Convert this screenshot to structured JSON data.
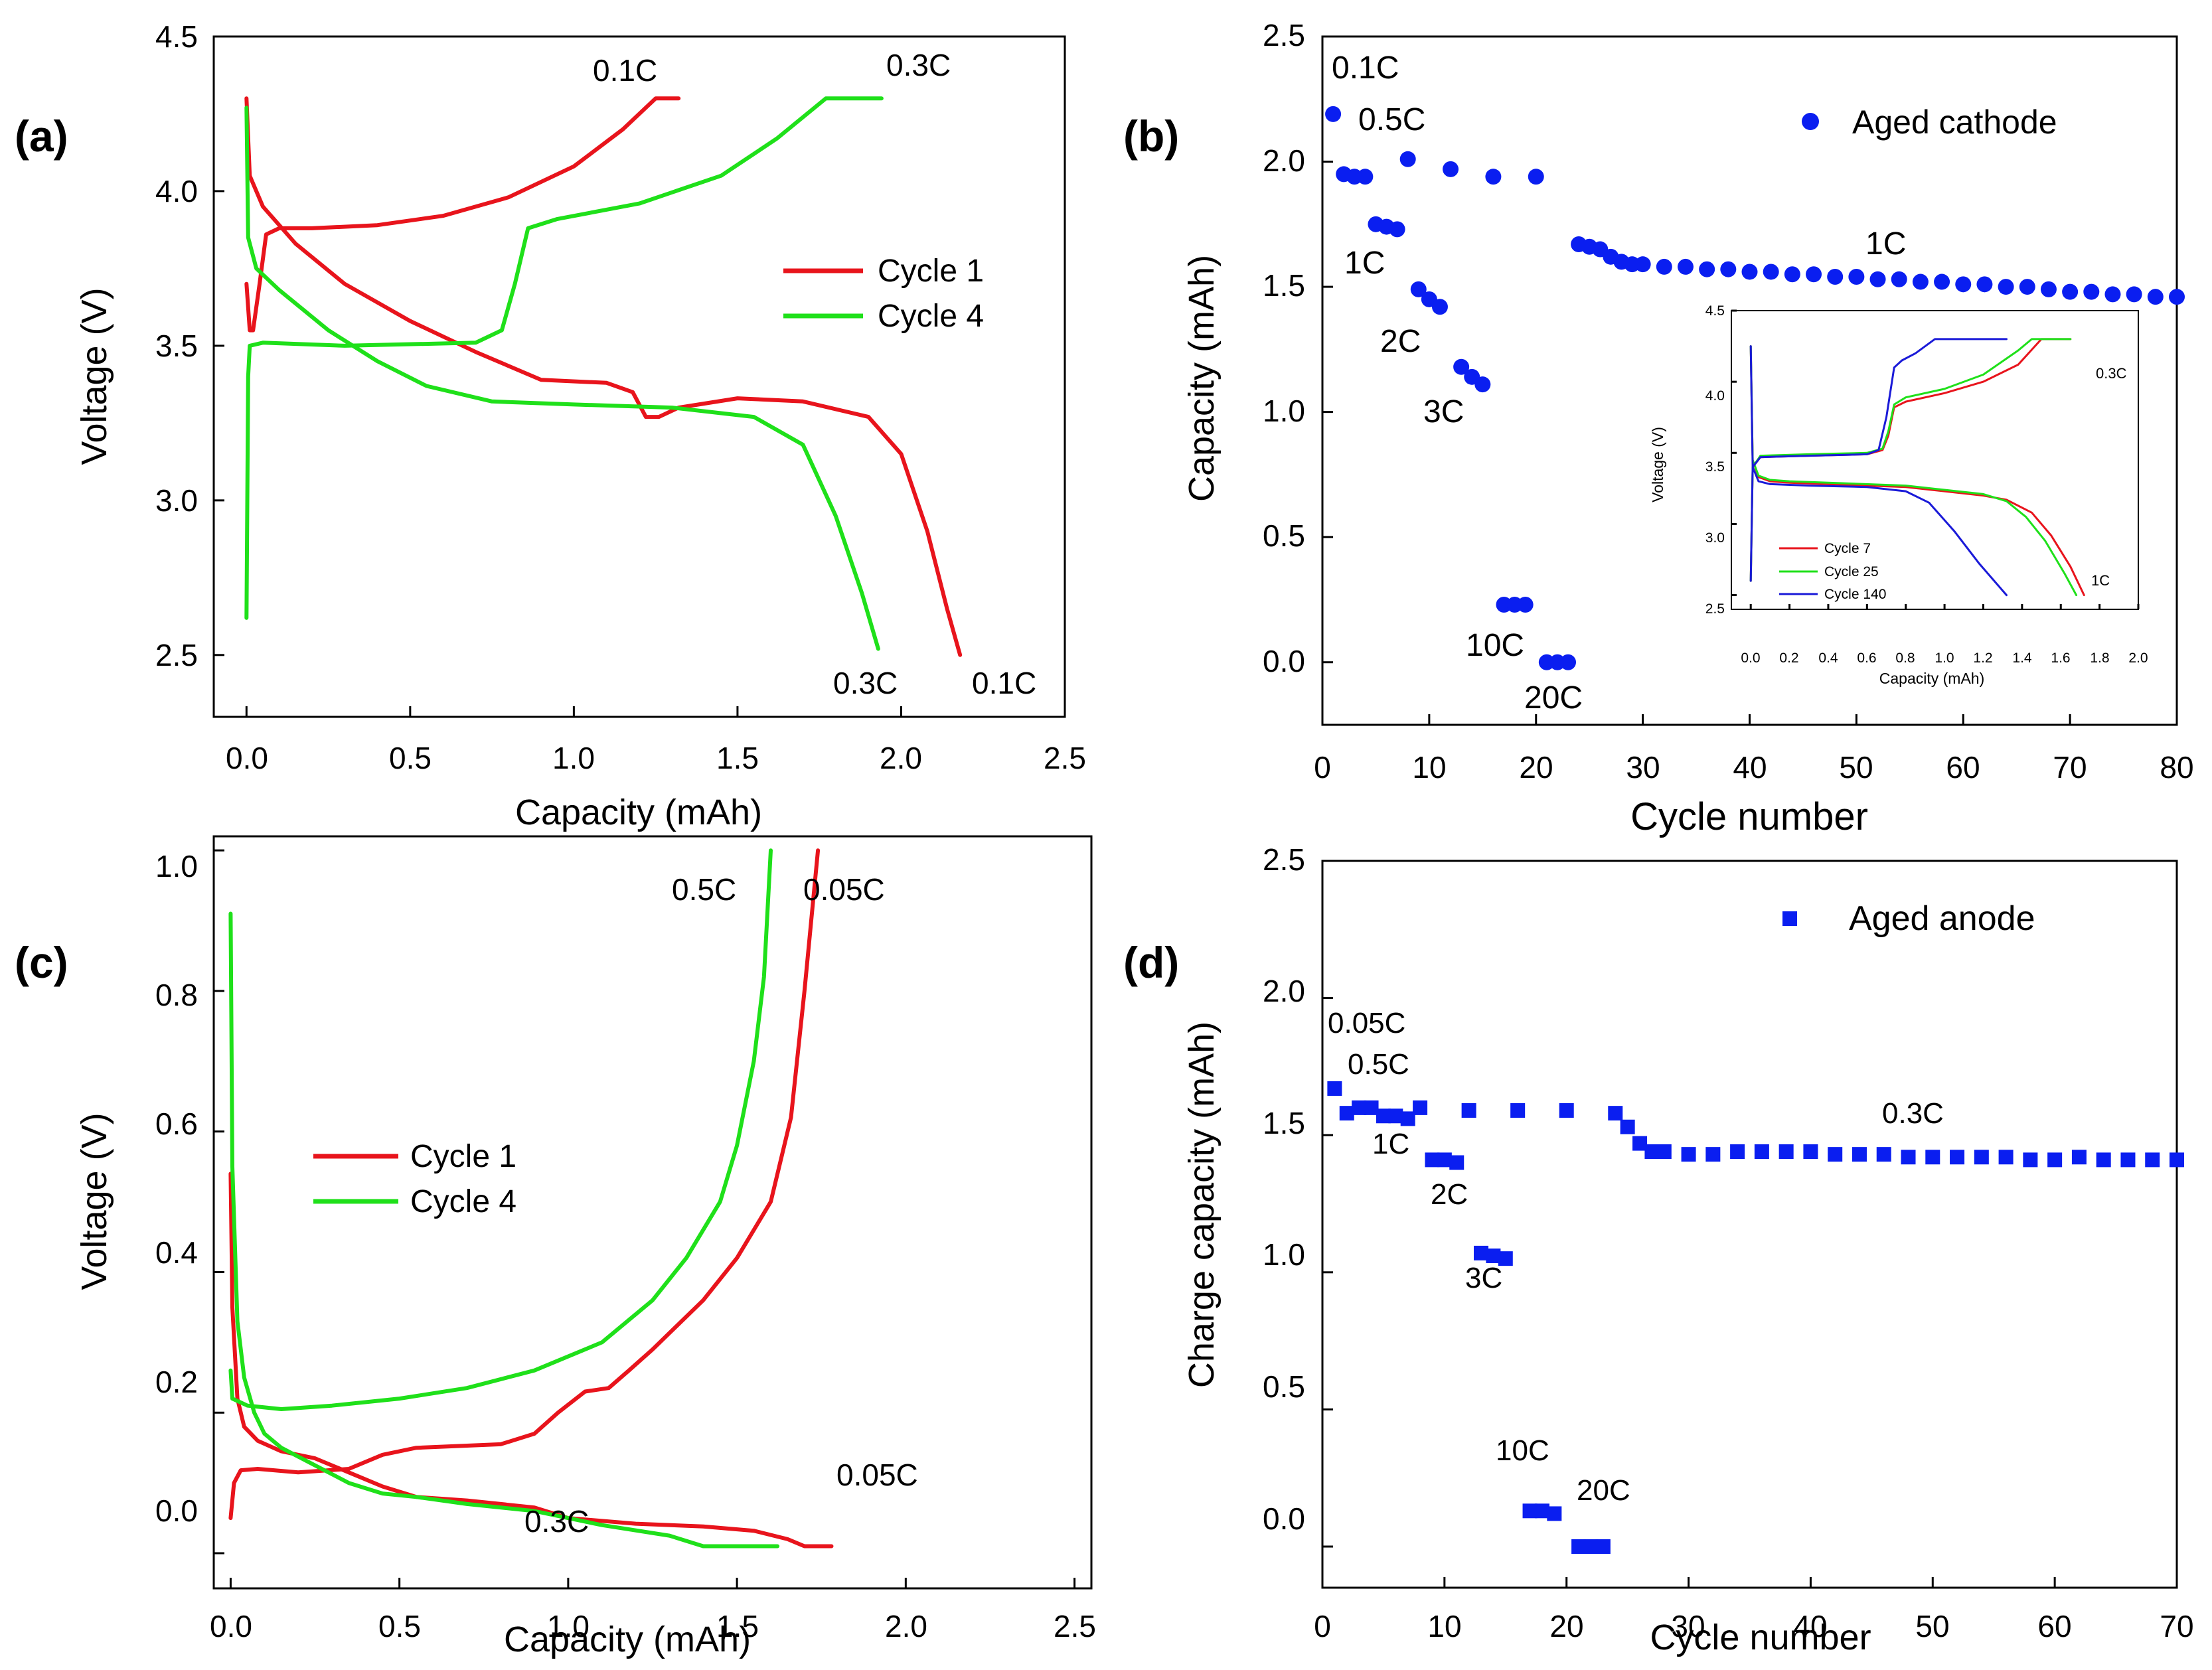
{
  "chart_data": [
    {
      "type": "line",
      "panel_label": "(a)",
      "title": "",
      "xlabel": "Capacity (mAh)",
      "ylabel": "Voltage (V)",
      "xlim": [
        -0.1,
        2.5
      ],
      "ylim": [
        2.3,
        4.5
      ],
      "xticks": [
        "0.0",
        "0.5",
        "1.0",
        "1.5",
        "2.0",
        "2.5"
      ],
      "yticks": [
        "2.5",
        "3.0",
        "3.5",
        "4.0",
        "4.5"
      ],
      "legend": {
        "position": "right-middle",
        "entries": [
          "Cycle 1",
          "Cycle 4"
        ]
      },
      "colors": {
        "Cycle 1": "#e8141c",
        "Cycle 4": "#1fe01a"
      },
      "series": [
        {
          "name": "Cycle 1",
          "segment": "charge",
          "x": [
            0,
            0.01,
            0.02,
            0.04,
            0.06,
            0.1,
            0.2,
            0.4,
            0.6,
            0.8,
            1.0,
            1.15,
            1.25,
            1.32
          ],
          "y": [
            3.7,
            3.55,
            3.55,
            3.7,
            3.86,
            3.88,
            3.88,
            3.89,
            3.92,
            3.98,
            4.08,
            4.2,
            4.3,
            4.3
          ]
        },
        {
          "name": "Cycle 1",
          "segment": "discharge",
          "x": [
            0,
            0.01,
            0.05,
            0.15,
            0.3,
            0.5,
            0.7,
            0.9,
            1.1,
            1.18,
            1.22,
            1.26,
            1.32,
            1.5,
            1.7,
            1.9,
            2.0,
            2.08,
            2.14,
            2.18
          ],
          "y": [
            4.3,
            4.05,
            3.95,
            3.83,
            3.7,
            3.58,
            3.48,
            3.39,
            3.38,
            3.35,
            3.27,
            3.27,
            3.3,
            3.33,
            3.32,
            3.27,
            3.15,
            2.9,
            2.65,
            2.5
          ]
        },
        {
          "name": "Cycle 4",
          "segment": "charge",
          "x": [
            0,
            0.005,
            0.01,
            0.05,
            0.3,
            0.7,
            0.78,
            0.82,
            0.86,
            0.95,
            1.2,
            1.45,
            1.62,
            1.77,
            1.94
          ],
          "y": [
            2.62,
            3.4,
            3.5,
            3.51,
            3.5,
            3.51,
            3.55,
            3.7,
            3.88,
            3.91,
            3.96,
            4.05,
            4.17,
            4.3,
            4.3
          ]
        },
        {
          "name": "Cycle 4",
          "segment": "discharge",
          "x": [
            0,
            0.005,
            0.03,
            0.1,
            0.25,
            0.4,
            0.55,
            0.75,
            1.0,
            1.3,
            1.55,
            1.7,
            1.8,
            1.88,
            1.93
          ],
          "y": [
            4.27,
            3.85,
            3.75,
            3.68,
            3.55,
            3.45,
            3.37,
            3.32,
            3.31,
            3.3,
            3.27,
            3.18,
            2.95,
            2.7,
            2.52
          ]
        }
      ],
      "annotations": [
        "0.1C",
        "0.3C",
        "0.3C",
        "0.1C"
      ]
    },
    {
      "type": "scatter",
      "panel_label": "(b)",
      "title": "",
      "xlabel": "Cycle number",
      "ylabel": "Capacity (mAh)",
      "xlim": [
        0,
        80
      ],
      "ylim": [
        -0.25,
        2.5
      ],
      "xticks": [
        "0",
        "10",
        "20",
        "30",
        "40",
        "50",
        "60",
        "70",
        "80"
      ],
      "yticks": [
        "0.0",
        "0.5",
        "1.0",
        "1.5",
        "2.0",
        "2.5"
      ],
      "legend": {
        "position": "top-right",
        "entries": [
          "Aged cathode"
        ]
      },
      "colors": {
        "Aged cathode": "#0a1ef0"
      },
      "series": [
        {
          "name": "Aged cathode",
          "x": [
            1,
            2,
            3,
            4,
            5,
            6,
            7,
            8,
            9,
            10,
            11,
            12,
            13,
            14,
            15,
            16,
            17,
            18,
            19,
            20,
            21,
            22,
            23,
            24,
            25,
            26,
            27,
            28,
            29,
            30,
            32,
            34,
            36,
            38,
            40,
            42,
            44,
            46,
            48,
            50,
            52,
            54,
            56,
            58,
            60,
            62,
            64,
            66,
            68,
            70,
            72,
            74,
            76,
            78,
            80
          ],
          "y": [
            2.19,
            1.95,
            1.94,
            1.94,
            1.75,
            1.74,
            1.73,
            2.01,
            1.49,
            1.45,
            1.42,
            1.97,
            1.18,
            1.14,
            1.11,
            1.94,
            0.23,
            0.23,
            0.23,
            1.94,
            0.0,
            0.0,
            0.0,
            1.67,
            1.66,
            1.65,
            1.62,
            1.6,
            1.59,
            1.59,
            1.58,
            1.58,
            1.57,
            1.57,
            1.56,
            1.56,
            1.55,
            1.55,
            1.54,
            1.54,
            1.53,
            1.53,
            1.52,
            1.52,
            1.51,
            1.51,
            1.5,
            1.5,
            1.49,
            1.48,
            1.48,
            1.47,
            1.47,
            1.46,
            1.46
          ]
        }
      ],
      "annotations": [
        "0.1C",
        "0.5C",
        "1C",
        "2C",
        "3C",
        "10C",
        "20C",
        "1C"
      ],
      "inset": {
        "type": "line",
        "xlabel": "Capacity (mAh)",
        "ylabel": "Voltage (V)",
        "xlim": [
          -0.1,
          2.0
        ],
        "ylim": [
          2.4,
          4.5
        ],
        "xticks": [
          "0.0",
          "0.2",
          "0.4",
          "0.6",
          "0.8",
          "1.0",
          "1.2",
          "1.4",
          "1.6",
          "1.8",
          "2.0"
        ],
        "yticks": [
          "2.5",
          "3.0",
          "3.5",
          "4.0",
          "4.5"
        ],
        "legend": {
          "position": "bottom-left",
          "entries": [
            "Cycle 7",
            "Cycle 25",
            "Cycle 140"
          ]
        },
        "colors": {
          "Cycle 7": "#e8141c",
          "Cycle 25": "#1fe01a",
          "Cycle 140": "#1a1ad8"
        },
        "series": [
          {
            "name": "Cycle 7",
            "segment": "charge",
            "x": [
              0,
              0.01,
              0.05,
              0.3,
              0.6,
              0.68,
              0.71,
              0.74,
              0.8,
              1.0,
              1.2,
              1.38,
              1.5,
              1.65
            ],
            "y": [
              2.6,
              3.4,
              3.47,
              3.48,
              3.49,
              3.52,
              3.62,
              3.82,
              3.86,
              3.92,
              4.0,
              4.12,
              4.3,
              4.3
            ]
          },
          {
            "name": "Cycle 7",
            "segment": "discharge",
            "x": [
              0,
              0.01,
              0.04,
              0.1,
              0.2,
              0.4,
              0.8,
              1.2,
              1.32,
              1.45,
              1.55,
              1.65,
              1.72
            ],
            "y": [
              4.25,
              3.45,
              3.33,
              3.3,
              3.29,
              3.28,
              3.26,
              3.2,
              3.17,
              3.08,
              2.92,
              2.7,
              2.5
            ]
          },
          {
            "name": "Cycle 25",
            "segment": "charge",
            "x": [
              0,
              0.01,
              0.05,
              0.3,
              0.6,
              0.68,
              0.71,
              0.74,
              0.8,
              1.0,
              1.2,
              1.38,
              1.45,
              1.65
            ],
            "y": [
              2.6,
              3.4,
              3.48,
              3.49,
              3.5,
              3.53,
              3.65,
              3.84,
              3.89,
              3.95,
              4.05,
              4.22,
              4.3,
              4.3
            ]
          },
          {
            "name": "Cycle 25",
            "segment": "discharge",
            "x": [
              0,
              0.01,
              0.04,
              0.1,
              0.2,
              0.4,
              0.8,
              1.2,
              1.32,
              1.42,
              1.52,
              1.62,
              1.68
            ],
            "y": [
              4.25,
              3.45,
              3.34,
              3.31,
              3.3,
              3.29,
              3.27,
              3.21,
              3.16,
              3.05,
              2.88,
              2.65,
              2.5
            ]
          },
          {
            "name": "Cycle 140",
            "segment": "charge",
            "x": [
              0,
              0.01,
              0.05,
              0.3,
              0.6,
              0.66,
              0.7,
              0.74,
              0.78,
              0.85,
              0.95,
              1.32
            ],
            "y": [
              2.6,
              3.4,
              3.47,
              3.48,
              3.49,
              3.52,
              3.75,
              4.1,
              4.15,
              4.2,
              4.3,
              4.3
            ]
          },
          {
            "name": "Cycle 140",
            "segment": "discharge",
            "x": [
              0,
              0.01,
              0.04,
              0.1,
              0.3,
              0.6,
              0.8,
              0.92,
              1.05,
              1.18,
              1.32
            ],
            "y": [
              4.25,
              3.4,
              3.3,
              3.28,
              3.27,
              3.26,
              3.23,
              3.15,
              2.95,
              2.72,
              2.5
            ]
          }
        ],
        "annotations": [
          "0.3C",
          "1C"
        ]
      }
    },
    {
      "type": "line",
      "panel_label": "(c)",
      "title": "",
      "xlabel": "Capacity (mAh)",
      "ylabel": "Voltage (V)",
      "xlim": [
        -0.05,
        2.55
      ],
      "ylim": [
        -0.05,
        1.02
      ],
      "xticks": [
        "0.0",
        "0.5",
        "1.0",
        "1.5",
        "2.0",
        "2.5"
      ],
      "yticks": [
        "0.0",
        "0.2",
        "0.4",
        "0.6",
        "0.8",
        "1.0"
      ],
      "legend": {
        "position": "left-middle",
        "entries": [
          "Cycle 1",
          "Cycle 4"
        ]
      },
      "colors": {
        "Cycle 1": "#e8141c",
        "Cycle 4": "#1fe01a"
      },
      "series": [
        {
          "name": "Cycle 1",
          "segment": "lithiation",
          "x": [
            0,
            0.005,
            0.02,
            0.04,
            0.08,
            0.15,
            0.25,
            0.35,
            0.45,
            0.55,
            0.7,
            0.9,
            1.0,
            1.2,
            1.4,
            1.55,
            1.65,
            1.7,
            1.78
          ],
          "y": [
            0.54,
            0.35,
            0.22,
            0.18,
            0.16,
            0.145,
            0.135,
            0.115,
            0.095,
            0.08,
            0.075,
            0.065,
            0.05,
            0.042,
            0.038,
            0.032,
            0.02,
            0.01,
            0.01
          ]
        },
        {
          "name": "Cycle 1",
          "segment": "delithiation",
          "x": [
            0,
            0.01,
            0.03,
            0.08,
            0.2,
            0.35,
            0.45,
            0.55,
            0.8,
            0.9,
            0.97,
            1.05,
            1.12,
            1.18,
            1.25,
            1.4,
            1.5,
            1.6,
            1.66,
            1.7,
            1.74
          ],
          "y": [
            0.05,
            0.1,
            0.118,
            0.12,
            0.115,
            0.12,
            0.14,
            0.15,
            0.155,
            0.17,
            0.2,
            0.23,
            0.235,
            0.26,
            0.29,
            0.36,
            0.42,
            0.5,
            0.62,
            0.8,
            1.0
          ]
        },
        {
          "name": "Cycle 4",
          "segment": "lithiation",
          "x": [
            0,
            0.005,
            0.02,
            0.04,
            0.07,
            0.1,
            0.15,
            0.25,
            0.35,
            0.45,
            0.55,
            0.7,
            0.9,
            1.1,
            1.3,
            1.4,
            1.62
          ],
          "y": [
            0.91,
            0.55,
            0.33,
            0.25,
            0.2,
            0.17,
            0.15,
            0.125,
            0.1,
            0.085,
            0.08,
            0.07,
            0.06,
            0.04,
            0.025,
            0.01,
            0.01
          ]
        },
        {
          "name": "Cycle 4",
          "segment": "delithiation",
          "x": [
            0,
            0.005,
            0.05,
            0.15,
            0.3,
            0.5,
            0.7,
            0.9,
            1.1,
            1.25,
            1.35,
            1.45,
            1.5,
            1.55,
            1.58,
            1.6
          ],
          "y": [
            0.26,
            0.22,
            0.21,
            0.205,
            0.21,
            0.22,
            0.235,
            0.26,
            0.3,
            0.36,
            0.42,
            0.5,
            0.58,
            0.7,
            0.82,
            1.0
          ]
        }
      ],
      "annotations": [
        "0.5C",
        "0.05C",
        "0.05C",
        "0.3C"
      ]
    },
    {
      "type": "scatter",
      "panel_label": "(d)",
      "title": "",
      "xlabel": "Cycle number",
      "ylabel": "Charge capacity (mAh)",
      "xlim": [
        0,
        70
      ],
      "ylim": [
        -0.15,
        2.5
      ],
      "xticks": [
        "0",
        "10",
        "20",
        "30",
        "40",
        "50",
        "60",
        "70"
      ],
      "yticks": [
        "0.0",
        "0.5",
        "1.0",
        "1.5",
        "2.0",
        "2.5"
      ],
      "legend": {
        "position": "top-right",
        "entries": [
          "Aged anode"
        ]
      },
      "colors": {
        "Aged anode": "#0a1ef0"
      },
      "series": [
        {
          "name": "Aged anode",
          "x": [
            1,
            2,
            3,
            4,
            5,
            6,
            7,
            8,
            9,
            10,
            11,
            12,
            13,
            14,
            15,
            16,
            17,
            18,
            19,
            20,
            21,
            22,
            23,
            24,
            25,
            26,
            27,
            28,
            30,
            32,
            34,
            36,
            38,
            40,
            42,
            44,
            46,
            48,
            50,
            52,
            54,
            56,
            58,
            60,
            62,
            64,
            66,
            68,
            70
          ],
          "y": [
            1.67,
            1.58,
            1.6,
            1.6,
            1.57,
            1.57,
            1.56,
            1.6,
            1.41,
            1.41,
            1.4,
            1.59,
            1.07,
            1.06,
            1.05,
            1.59,
            0.13,
            0.13,
            0.12,
            1.59,
            0.0,
            0.0,
            0.0,
            1.58,
            1.53,
            1.47,
            1.44,
            1.44,
            1.43,
            1.43,
            1.44,
            1.44,
            1.44,
            1.44,
            1.43,
            1.43,
            1.43,
            1.42,
            1.42,
            1.42,
            1.42,
            1.42,
            1.41,
            1.41,
            1.42,
            1.41,
            1.41,
            1.41,
            1.41
          ]
        }
      ],
      "annotations": [
        "0.05C",
        "0.5C",
        "1C",
        "2C",
        "3C",
        "10C",
        "20C",
        "0.3C"
      ]
    }
  ]
}
